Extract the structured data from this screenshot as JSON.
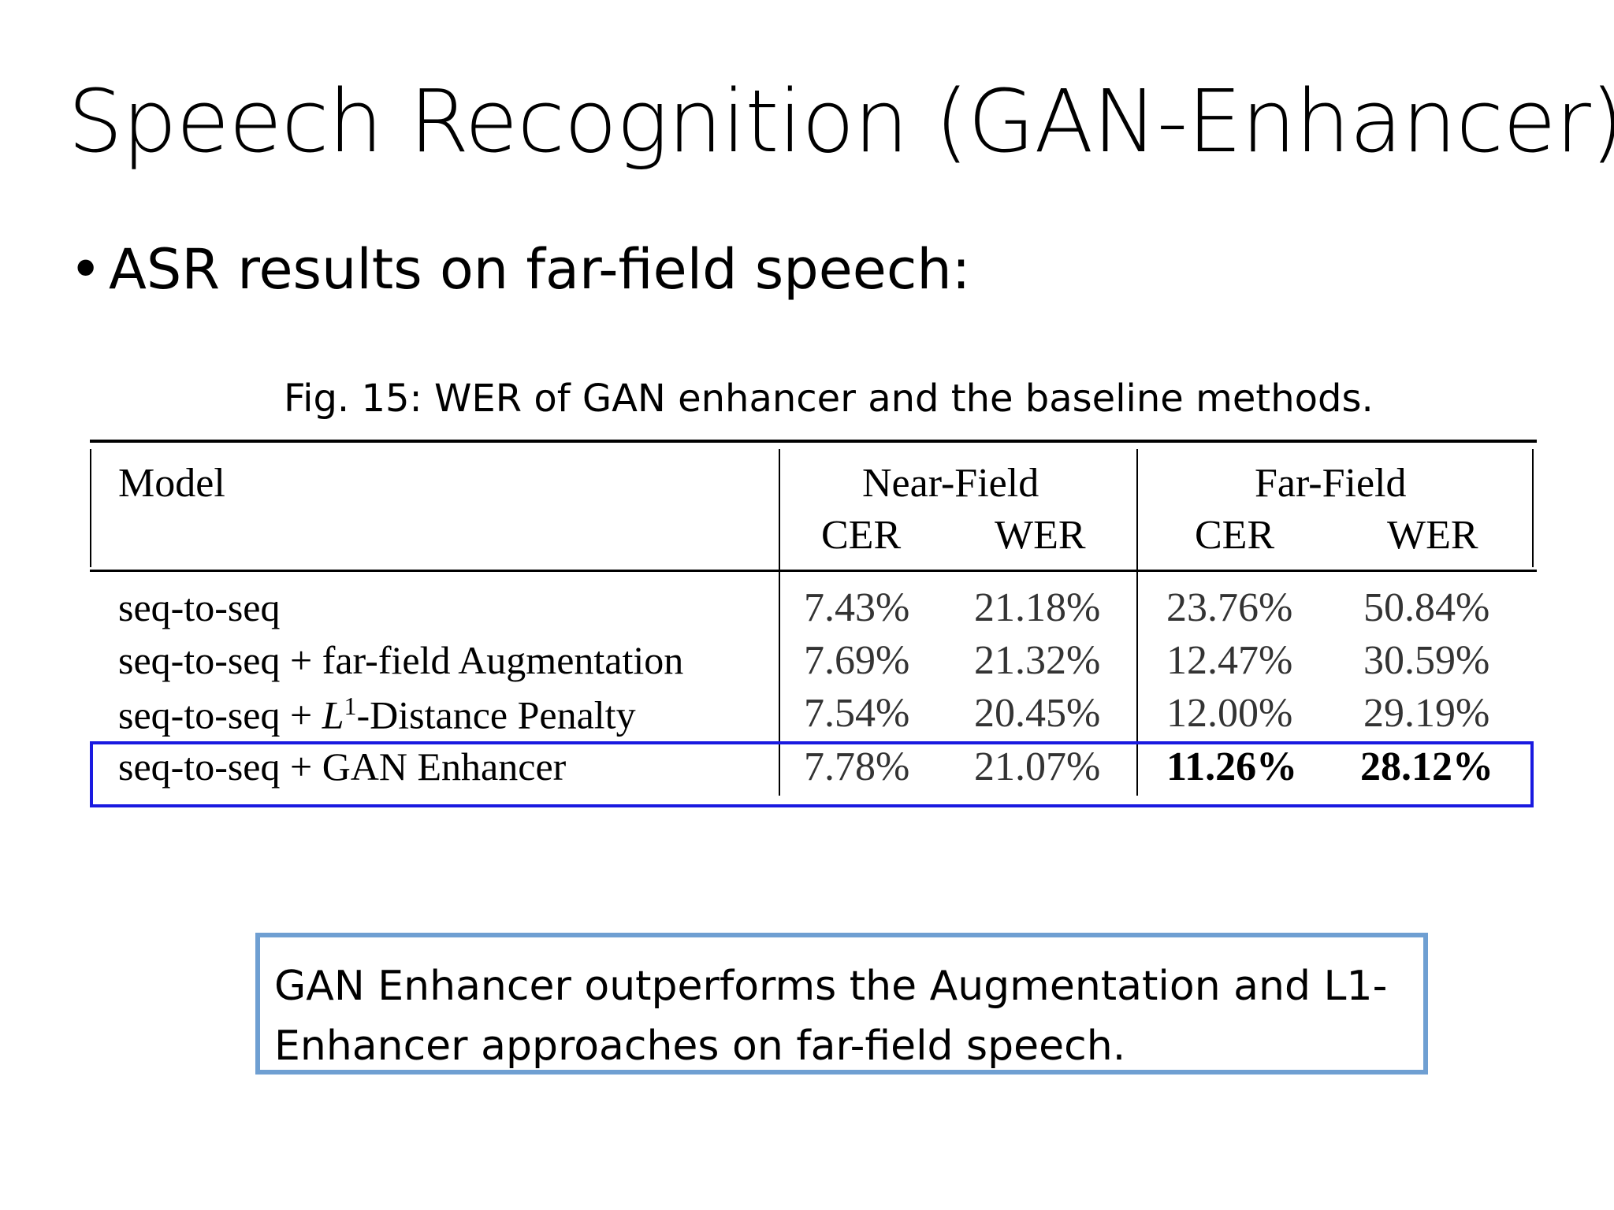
{
  "slide": {
    "title": "Speech Recognition (GAN-Enhancer)",
    "bullet": "ASR results on far-field speech:",
    "caption": "Fig. 15: WER of GAN enhancer and the baseline methods.",
    "note": "GAN Enhancer outperforms the Augmentation and L1-Enhancer approaches on far-field speech."
  },
  "table": {
    "model_header": "Model",
    "groups": [
      "Near-Field",
      "Far-Field"
    ],
    "subheaders": [
      "CER",
      "WER",
      "CER",
      "WER"
    ],
    "rows": [
      {
        "model": "seq-to-seq",
        "values": [
          "7.43%",
          "21.18%",
          "23.76%",
          "50.84%"
        ]
      },
      {
        "model": "seq-to-seq + far-field Augmentation",
        "values": [
          "7.69%",
          "21.32%",
          "12.47%",
          "30.59%"
        ]
      },
      {
        "model_prefix": "seq-to-seq + ",
        "model_var": "L",
        "model_sup": "1",
        "model_suffix": "-Distance Penalty",
        "values": [
          "7.54%",
          "20.45%",
          "12.00%",
          "29.19%"
        ]
      },
      {
        "model": "seq-to-seq + GAN Enhancer",
        "values": [
          "7.78%",
          "21.07%",
          "11.26%",
          "28.12%"
        ]
      }
    ]
  }
}
